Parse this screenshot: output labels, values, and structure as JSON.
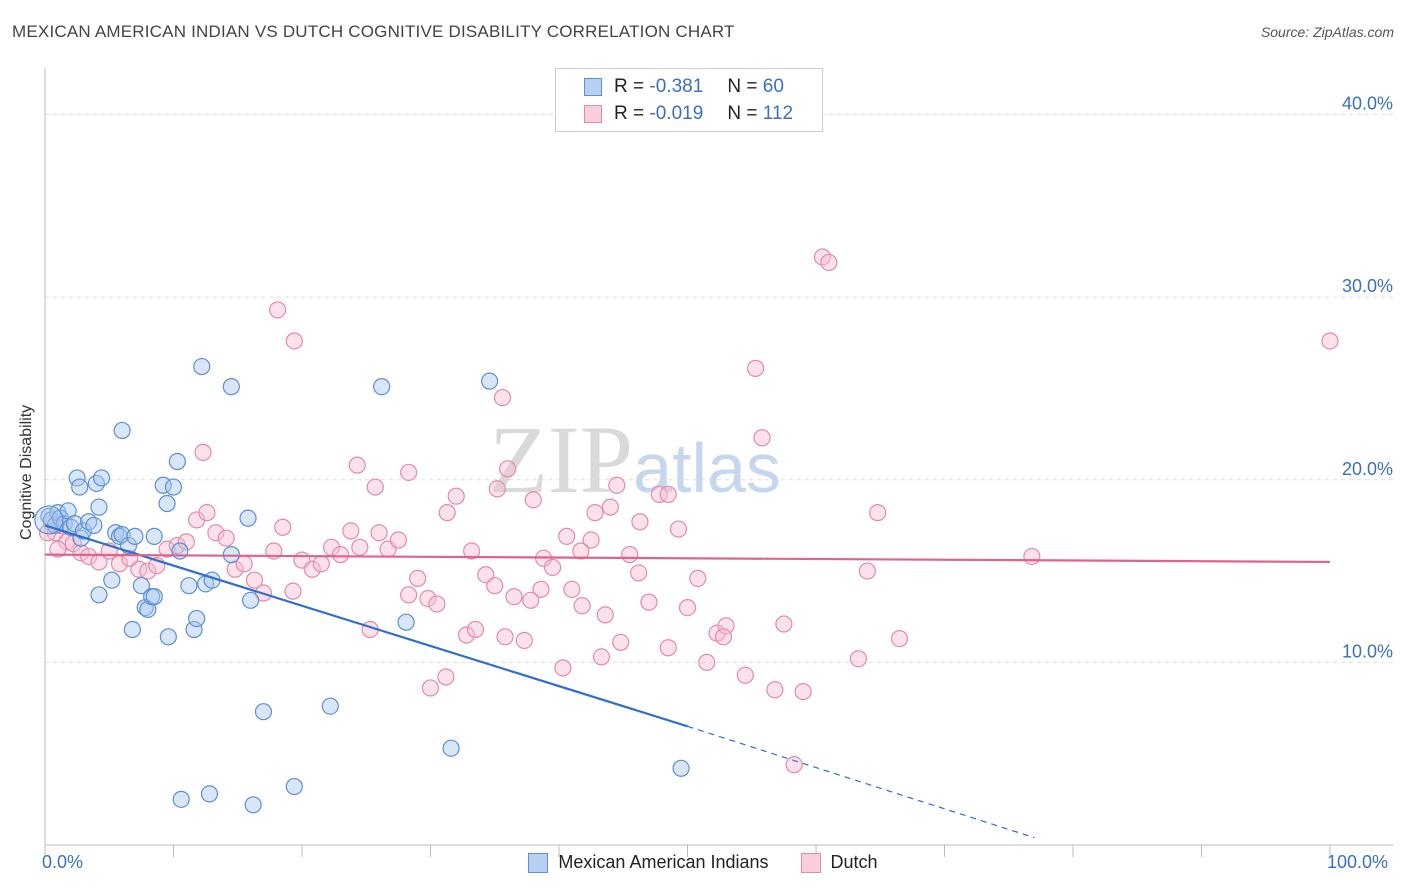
{
  "chart_data": {
    "type": "scatter",
    "title": "MEXICAN AMERICAN INDIAN VS DUTCH COGNITIVE DISABILITY CORRELATION CHART",
    "source": "Source: ZipAtlas.com",
    "xlabel": "",
    "ylabel": "Cognitive Disability",
    "xlim": [
      0,
      100
    ],
    "ylim": [
      0,
      42
    ],
    "x_tick_labels": [
      "0.0%",
      "100.0%"
    ],
    "y_ticks": [
      10,
      20,
      30,
      40
    ],
    "y_tick_labels": [
      "10.0%",
      "20.0%",
      "30.0%",
      "40.0%"
    ],
    "watermark": "ZIPatlas",
    "legend": [
      {
        "name": "Mexican American Indians",
        "r_label": "R = ",
        "r": "-0.381",
        "n_label": "N = ",
        "n": "60"
      },
      {
        "name": "Dutch",
        "r_label": "R = ",
        "r": "-0.019",
        "n_label": "N = ",
        "n": "112"
      }
    ],
    "colors": {
      "blue_fill": "#a9c7ef",
      "blue_stroke": "#5b8fd6",
      "blue_line": "#2f6fcf",
      "pink_fill": "#f6bfd0",
      "pink_stroke": "#e58aa8",
      "pink_line": "#e0638d",
      "grid": "#dddddd",
      "tick_text": "#3a6fc4"
    },
    "series": [
      {
        "name": "Mexican American Indians",
        "trend": {
          "x0": 0,
          "y0": 17.5,
          "x1": 50,
          "y1": 6.5,
          "dash_to_x": 77,
          "dash_to_y": 0.4
        },
        "points": [
          [
            0.3,
            18.0
          ],
          [
            0.5,
            17.8
          ],
          [
            0.8,
            17.5
          ],
          [
            1.0,
            18.2
          ],
          [
            1.2,
            17.9
          ],
          [
            1.5,
            17.6
          ],
          [
            1.8,
            18.3
          ],
          [
            2.0,
            17.4
          ],
          [
            2.3,
            17.6
          ],
          [
            2.8,
            16.8
          ],
          [
            3.0,
            17.2
          ],
          [
            3.4,
            17.7
          ],
          [
            3.8,
            17.5
          ],
          [
            4.2,
            18.5
          ],
          [
            2.5,
            20.1
          ],
          [
            2.7,
            19.6
          ],
          [
            4.0,
            19.8
          ],
          [
            4.4,
            20.1
          ],
          [
            5.5,
            17.1
          ],
          [
            5.8,
            16.9
          ],
          [
            6.0,
            17.0
          ],
          [
            6.5,
            16.4
          ],
          [
            7.0,
            16.9
          ],
          [
            8.5,
            16.9
          ],
          [
            9.2,
            19.7
          ],
          [
            9.5,
            18.7
          ],
          [
            10.0,
            19.6
          ],
          [
            10.3,
            21.0
          ],
          [
            10.5,
            16.1
          ],
          [
            11.2,
            14.2
          ],
          [
            11.6,
            11.8
          ],
          [
            11.8,
            12.4
          ],
          [
            12.5,
            14.3
          ],
          [
            13.0,
            14.5
          ],
          [
            14.5,
            15.9
          ],
          [
            15.8,
            17.9
          ],
          [
            16.0,
            13.4
          ],
          [
            7.5,
            14.2
          ],
          [
            7.8,
            13.0
          ],
          [
            8.0,
            12.9
          ],
          [
            8.3,
            13.6
          ],
          [
            8.5,
            13.6
          ],
          [
            5.2,
            14.5
          ],
          [
            4.2,
            13.7
          ],
          [
            6.8,
            11.8
          ],
          [
            9.6,
            11.4
          ],
          [
            6.0,
            22.7
          ],
          [
            12.2,
            26.2
          ],
          [
            26.2,
            25.1
          ],
          [
            34.6,
            25.4
          ],
          [
            14.5,
            25.1
          ],
          [
            28.1,
            12.2
          ],
          [
            17.0,
            7.3
          ],
          [
            22.2,
            7.6
          ],
          [
            31.6,
            5.3
          ],
          [
            10.6,
            2.5
          ],
          [
            12.8,
            2.8
          ],
          [
            16.2,
            2.2
          ],
          [
            19.4,
            3.2
          ],
          [
            49.5,
            4.2
          ]
        ]
      },
      {
        "name": "Dutch",
        "trend": {
          "x0": 0,
          "y0": 15.9,
          "x1": 100,
          "y1": 15.5
        },
        "points": [
          [
            0.5,
            17.6
          ],
          [
            0.8,
            17.1
          ],
          [
            1.2,
            17.5
          ],
          [
            1.7,
            16.6
          ],
          [
            2.2,
            16.5
          ],
          [
            2.8,
            16.0
          ],
          [
            3.4,
            15.8
          ],
          [
            4.2,
            15.5
          ],
          [
            5.0,
            16.1
          ],
          [
            5.8,
            15.4
          ],
          [
            6.6,
            15.7
          ],
          [
            7.3,
            15.1
          ],
          [
            8.0,
            15.0
          ],
          [
            8.7,
            15.3
          ],
          [
            9.5,
            16.2
          ],
          [
            10.3,
            16.4
          ],
          [
            11.0,
            16.6
          ],
          [
            11.8,
            17.8
          ],
          [
            12.6,
            18.2
          ],
          [
            13.3,
            17.1
          ],
          [
            14.1,
            16.8
          ],
          [
            14.8,
            15.1
          ],
          [
            15.5,
            15.4
          ],
          [
            16.3,
            14.5
          ],
          [
            17.0,
            13.8
          ],
          [
            17.8,
            16.1
          ],
          [
            18.5,
            17.4
          ],
          [
            19.3,
            13.9
          ],
          [
            20.0,
            15.6
          ],
          [
            20.8,
            15.1
          ],
          [
            21.5,
            15.4
          ],
          [
            22.3,
            16.3
          ],
          [
            23.0,
            15.9
          ],
          [
            23.8,
            17.2
          ],
          [
            24.5,
            16.3
          ],
          [
            25.3,
            11.8
          ],
          [
            26.0,
            17.1
          ],
          [
            26.7,
            16.2
          ],
          [
            27.5,
            16.7
          ],
          [
            28.3,
            13.7
          ],
          [
            29.0,
            14.6
          ],
          [
            29.8,
            13.5
          ],
          [
            30.5,
            13.2
          ],
          [
            31.3,
            18.2
          ],
          [
            32.0,
            19.1
          ],
          [
            32.8,
            11.5
          ],
          [
            33.5,
            11.8
          ],
          [
            34.3,
            14.8
          ],
          [
            35.0,
            14.2
          ],
          [
            35.8,
            11.4
          ],
          [
            36.5,
            13.6
          ],
          [
            37.3,
            11.2
          ],
          [
            38.0,
            18.9
          ],
          [
            38.8,
            15.7
          ],
          [
            39.5,
            15.2
          ],
          [
            40.3,
            9.7
          ],
          [
            41.0,
            14.0
          ],
          [
            41.8,
            13.1
          ],
          [
            42.5,
            16.7
          ],
          [
            43.3,
            10.3
          ],
          [
            44.0,
            18.5
          ],
          [
            44.8,
            11.1
          ],
          [
            45.5,
            15.9
          ],
          [
            46.3,
            17.7
          ],
          [
            47.0,
            13.3
          ],
          [
            47.8,
            19.2
          ],
          [
            48.5,
            10.8
          ],
          [
            49.3,
            17.3
          ],
          [
            50.0,
            13.0
          ],
          [
            50.8,
            14.6
          ],
          [
            51.5,
            10.0
          ],
          [
            52.3,
            11.6
          ],
          [
            53.0,
            12.0
          ],
          [
            54.5,
            9.3
          ],
          [
            55.3,
            26.1
          ],
          [
            56.8,
            8.5
          ],
          [
            57.5,
            12.1
          ],
          [
            58.3,
            4.4
          ],
          [
            59.0,
            8.4
          ],
          [
            60.5,
            32.2
          ],
          [
            61.0,
            31.9
          ],
          [
            63.3,
            10.2
          ],
          [
            64.0,
            15.0
          ],
          [
            64.8,
            18.2
          ],
          [
            66.5,
            11.3
          ],
          [
            18.1,
            29.3
          ],
          [
            19.4,
            27.6
          ],
          [
            35.6,
            24.5
          ],
          [
            12.3,
            21.5
          ],
          [
            24.3,
            20.8
          ],
          [
            25.7,
            19.6
          ],
          [
            28.3,
            20.4
          ],
          [
            36.0,
            20.6
          ],
          [
            35.2,
            19.5
          ],
          [
            48.5,
            19.2
          ],
          [
            42.8,
            18.2
          ],
          [
            44.5,
            19.7
          ],
          [
            33.2,
            16.1
          ],
          [
            38.6,
            14.0
          ],
          [
            43.6,
            12.6
          ],
          [
            31.2,
            9.2
          ],
          [
            37.8,
            13.4
          ],
          [
            40.6,
            16.9
          ],
          [
            41.7,
            16.1
          ],
          [
            52.8,
            11.4
          ],
          [
            55.8,
            22.3
          ],
          [
            46.2,
            14.9
          ],
          [
            30.0,
            8.6
          ],
          [
            76.8,
            15.8
          ],
          [
            100.0,
            27.6
          ],
          [
            0.2,
            17.1
          ],
          [
            1.0,
            16.2
          ]
        ]
      }
    ]
  }
}
